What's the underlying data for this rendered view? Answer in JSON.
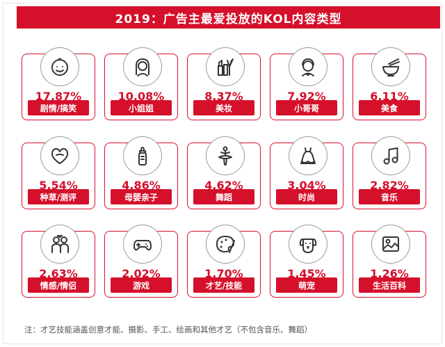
{
  "title": "2019：广告主最爱投放的KOL内容类型",
  "note": "注：才艺技能涵盖创意才能、摄影、手工、绘画和其他才艺（不包含音乐、舞蹈）",
  "colors": {
    "accent": "#d5102b",
    "icon_stroke": "#333333"
  },
  "chart_data": {
    "type": "table",
    "title": "2019：广告主最爱投放的KOL内容类型",
    "unit": "%",
    "items": [
      {
        "label": "剧情/搞笑",
        "value": 17.87,
        "display": "17.87%",
        "icon": "smiley-face-icon"
      },
      {
        "label": "小姐姐",
        "value": 10.08,
        "display": "10.08%",
        "icon": "girl-icon"
      },
      {
        "label": "美妆",
        "value": 8.37,
        "display": "8.37%",
        "icon": "makeup-icon"
      },
      {
        "label": "小哥哥",
        "value": 7.92,
        "display": "7.92%",
        "icon": "boy-icon"
      },
      {
        "label": "美食",
        "value": 6.11,
        "display": "6.11%",
        "icon": "bowl-chopsticks-icon"
      },
      {
        "label": "种草/测评",
        "value": 5.54,
        "display": "5.54%",
        "icon": "heart-icon"
      },
      {
        "label": "母婴亲子",
        "value": 4.86,
        "display": "4.86%",
        "icon": "baby-bottle-icon"
      },
      {
        "label": "舞蹈",
        "value": 4.62,
        "display": "4.62%",
        "icon": "ballerina-icon"
      },
      {
        "label": "时尚",
        "value": 3.04,
        "display": "3.04%",
        "icon": "dress-icon"
      },
      {
        "label": "音乐",
        "value": 2.82,
        "display": "2.82%",
        "icon": "music-note-icon"
      },
      {
        "label": "情感/情侣",
        "value": 2.63,
        "display": "2.63%",
        "icon": "couple-icon"
      },
      {
        "label": "游戏",
        "value": 2.02,
        "display": "2.02%",
        "icon": "gamepad-icon"
      },
      {
        "label": "才艺/技能",
        "value": 1.7,
        "display": "1.70%",
        "icon": "palette-icon"
      },
      {
        "label": "萌宠",
        "value": 1.45,
        "display": "1.45%",
        "icon": "dog-icon"
      },
      {
        "label": "生活百科",
        "value": 1.26,
        "display": "1.26%",
        "icon": "picture-icon"
      }
    ]
  }
}
